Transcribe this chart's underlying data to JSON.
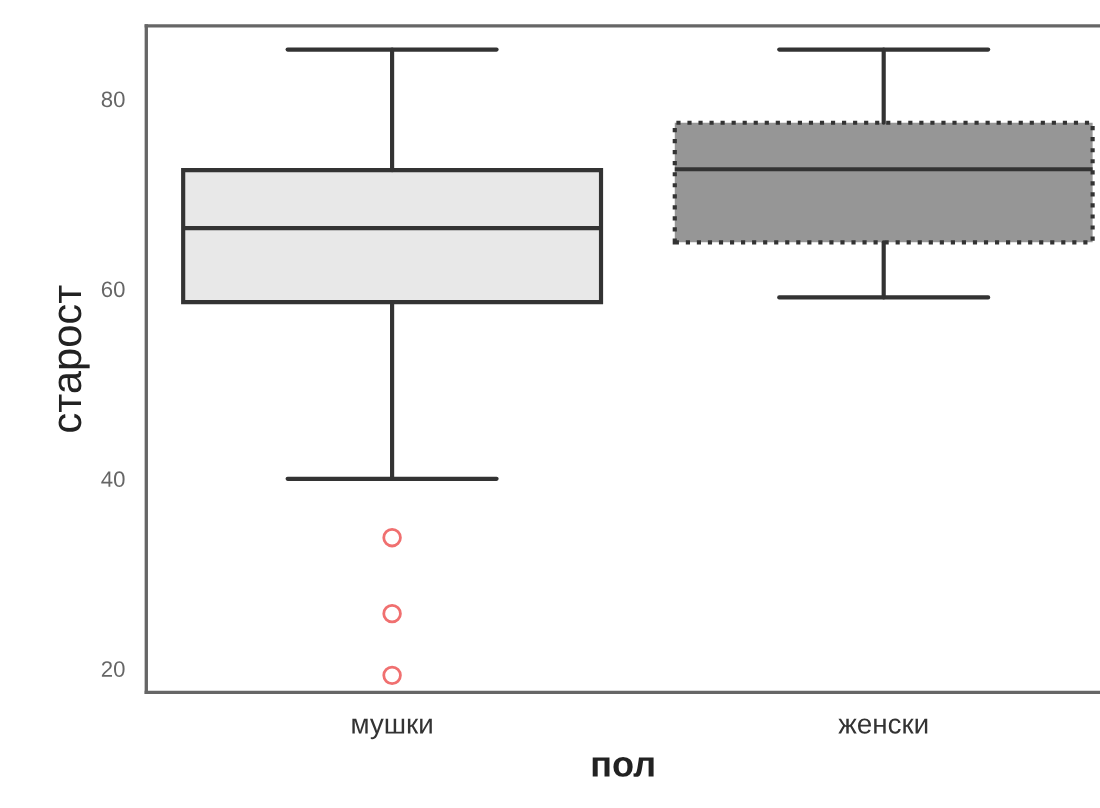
{
  "chart_data": {
    "type": "box",
    "xlabel": "пол",
    "ylabel": "старост",
    "categories": [
      "мушки",
      "женски"
    ],
    "boxes": [
      {
        "low": 40,
        "q1": 58.6,
        "median": 66.4,
        "q3": 72.5,
        "high": 85.2,
        "outliers": [
          33.8,
          25.8,
          19.3
        ]
      },
      {
        "low": 59.1,
        "q1": 64.9,
        "median": 72.6,
        "q3": 77.5,
        "high": 85.2
      }
    ],
    "colors": [
      "#e8e8e8",
      "#969696"
    ],
    "ylim": [
      17.5,
      87.7
    ],
    "yticks": [
      20,
      40,
      60,
      80
    ],
    "grid": false,
    "legend": false
  }
}
